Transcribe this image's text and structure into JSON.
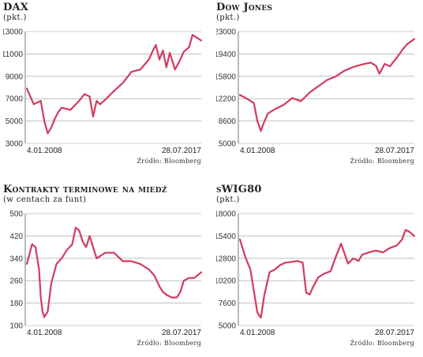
{
  "source_text": "Źródło: Bloomberg",
  "line_color": "#d23b5e",
  "chart_data": [
    {
      "type": "line",
      "title": "DAX",
      "subtitle": "(pkt.)",
      "x_start_label": "4.01.2008",
      "x_end_label": "28.07.2017",
      "ylim": [
        3000,
        13000
      ],
      "yticks": [
        3000,
        5000,
        7000,
        9000,
        11000,
        13000
      ],
      "grid": true,
      "x": [
        0,
        0.04,
        0.08,
        0.1,
        0.12,
        0.14,
        0.16,
        0.18,
        0.2,
        0.25,
        0.3,
        0.33,
        0.36,
        0.38,
        0.4,
        0.42,
        0.45,
        0.5,
        0.55,
        0.6,
        0.65,
        0.7,
        0.72,
        0.74,
        0.76,
        0.78,
        0.8,
        0.82,
        0.85,
        0.88,
        0.9,
        0.93,
        0.95,
        0.97,
        1
      ],
      "values": [
        7900,
        6500,
        6800,
        5000,
        3900,
        4400,
        5200,
        5800,
        6200,
        6000,
        6800,
        7400,
        7200,
        5400,
        6800,
        6500,
        6900,
        7700,
        8400,
        9400,
        9600,
        10500,
        11200,
        11800,
        10500,
        11300,
        9800,
        11100,
        9600,
        10500,
        11200,
        11600,
        12700,
        12500,
        12200
      ]
    },
    {
      "type": "line",
      "title": "Dow Jones",
      "subtitle": "(pkt.)",
      "x_start_label": "4.01.2008",
      "x_end_label": "28.07.2017",
      "ylim": [
        5000,
        23000
      ],
      "yticks": [
        5000,
        8600,
        12200,
        15800,
        19400,
        23000
      ],
      "grid": true,
      "x": [
        0,
        0.04,
        0.08,
        0.1,
        0.12,
        0.14,
        0.16,
        0.2,
        0.25,
        0.3,
        0.35,
        0.4,
        0.45,
        0.5,
        0.55,
        0.6,
        0.65,
        0.7,
        0.75,
        0.78,
        0.8,
        0.83,
        0.86,
        0.9,
        0.93,
        0.96,
        1
      ],
      "values": [
        12800,
        12200,
        11500,
        8600,
        7000,
        8500,
        9800,
        10500,
        11200,
        12300,
        11800,
        13200,
        14200,
        15200,
        15800,
        16700,
        17300,
        17700,
        18000,
        17500,
        16200,
        17800,
        17400,
        18800,
        20000,
        21000,
        21800
      ]
    },
    {
      "type": "line",
      "title": "Kontrakty terminowe na miedź",
      "subtitle": "(w centach za funt)",
      "x_start_label": "4.01.2008",
      "x_end_label": "28.07.2017",
      "ylim": [
        100,
        500
      ],
      "yticks": [
        100,
        180,
        260,
        340,
        420,
        500
      ],
      "grid": true,
      "x": [
        0,
        0.03,
        0.05,
        0.07,
        0.08,
        0.09,
        0.1,
        0.12,
        0.14,
        0.17,
        0.2,
        0.23,
        0.26,
        0.28,
        0.3,
        0.32,
        0.34,
        0.36,
        0.4,
        0.45,
        0.5,
        0.55,
        0.6,
        0.65,
        0.7,
        0.73,
        0.76,
        0.78,
        0.8,
        0.83,
        0.86,
        0.88,
        0.9,
        0.93,
        0.96,
        1
      ],
      "values": [
        320,
        390,
        380,
        300,
        200,
        150,
        130,
        150,
        250,
        320,
        340,
        370,
        390,
        450,
        440,
        400,
        380,
        420,
        340,
        360,
        360,
        330,
        330,
        320,
        300,
        280,
        240,
        220,
        210,
        200,
        200,
        220,
        260,
        270,
        270,
        290
      ]
    },
    {
      "type": "line",
      "title": "sWIG80",
      "subtitle": "(pkt.)",
      "x_start_label": "4.01.2008",
      "x_end_label": "28.07.2017",
      "ylim": [
        5000,
        18000
      ],
      "yticks": [
        5000,
        7600,
        10200,
        12800,
        15400,
        18000
      ],
      "grid": true,
      "x": [
        0,
        0.03,
        0.06,
        0.08,
        0.1,
        0.12,
        0.14,
        0.17,
        0.2,
        0.23,
        0.26,
        0.3,
        0.33,
        0.36,
        0.38,
        0.4,
        0.42,
        0.45,
        0.48,
        0.52,
        0.55,
        0.58,
        0.62,
        0.65,
        0.68,
        0.7,
        0.74,
        0.78,
        0.82,
        0.86,
        0.9,
        0.93,
        0.95,
        0.97,
        1
      ],
      "values": [
        15000,
        13000,
        11500,
        9000,
        6500,
        5900,
        8500,
        11200,
        11500,
        12000,
        12300,
        12400,
        12500,
        12300,
        8800,
        8600,
        9500,
        10600,
        11000,
        11300,
        13000,
        14500,
        12200,
        12800,
        12500,
        13200,
        13500,
        13700,
        13500,
        14000,
        14300,
        15000,
        16100,
        15900,
        15400
      ]
    }
  ]
}
